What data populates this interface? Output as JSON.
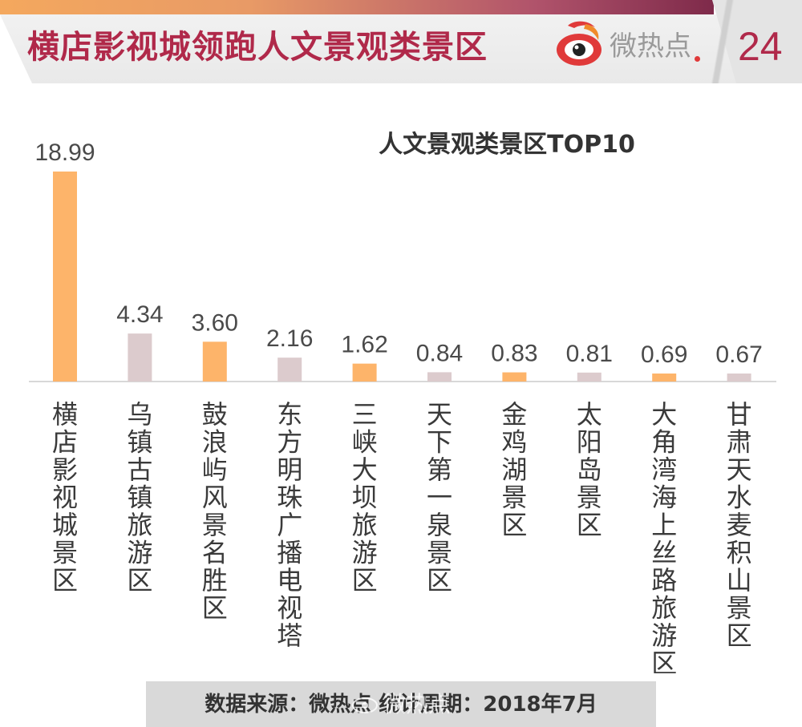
{
  "header": {
    "title": "横店影视城领跑人文景观类景区",
    "logo_text": "微热点",
    "page_number": "24"
  },
  "colors": {
    "accent": "#b0294a",
    "bar_primary": "#fdb46a",
    "bar_secondary": "#dccbcd",
    "axis": "#cccccc"
  },
  "chart_data": {
    "type": "bar",
    "title": "人文景观类景区TOP10",
    "categories": [
      "横店影视城景区",
      "乌镇古镇旅游区",
      "鼓浪屿风景名胜区",
      "东方明珠广播电视塔",
      "三峡大坝旅游区",
      "天下第一泉景区",
      "金鸡湖景区",
      "太阳岛景区",
      "大角湾海上丝路旅游区",
      "甘肃天水麦积山景区"
    ],
    "values": [
      18.99,
      4.34,
      3.6,
      2.16,
      1.62,
      0.84,
      0.83,
      0.81,
      0.69,
      0.67
    ],
    "value_labels": [
      "18.99",
      "4.34",
      "3.60",
      "2.16",
      "1.62",
      "0.84",
      "0.83",
      "0.81",
      "0.69",
      "0.67"
    ],
    "ylim": [
      0,
      18.99
    ],
    "bar_colors": [
      "#fdb46a",
      "#dccbcd",
      "#fdb46a",
      "#dccbcd",
      "#fdb46a",
      "#dccbcd",
      "#fdb46a",
      "#dccbcd",
      "#fdb46a",
      "#dccbcd"
    ],
    "grid": false,
    "legend": "none"
  },
  "footer": {
    "source": "数据来源：微热点    统计周期：2018年7月",
    "watermark": "微热点"
  }
}
